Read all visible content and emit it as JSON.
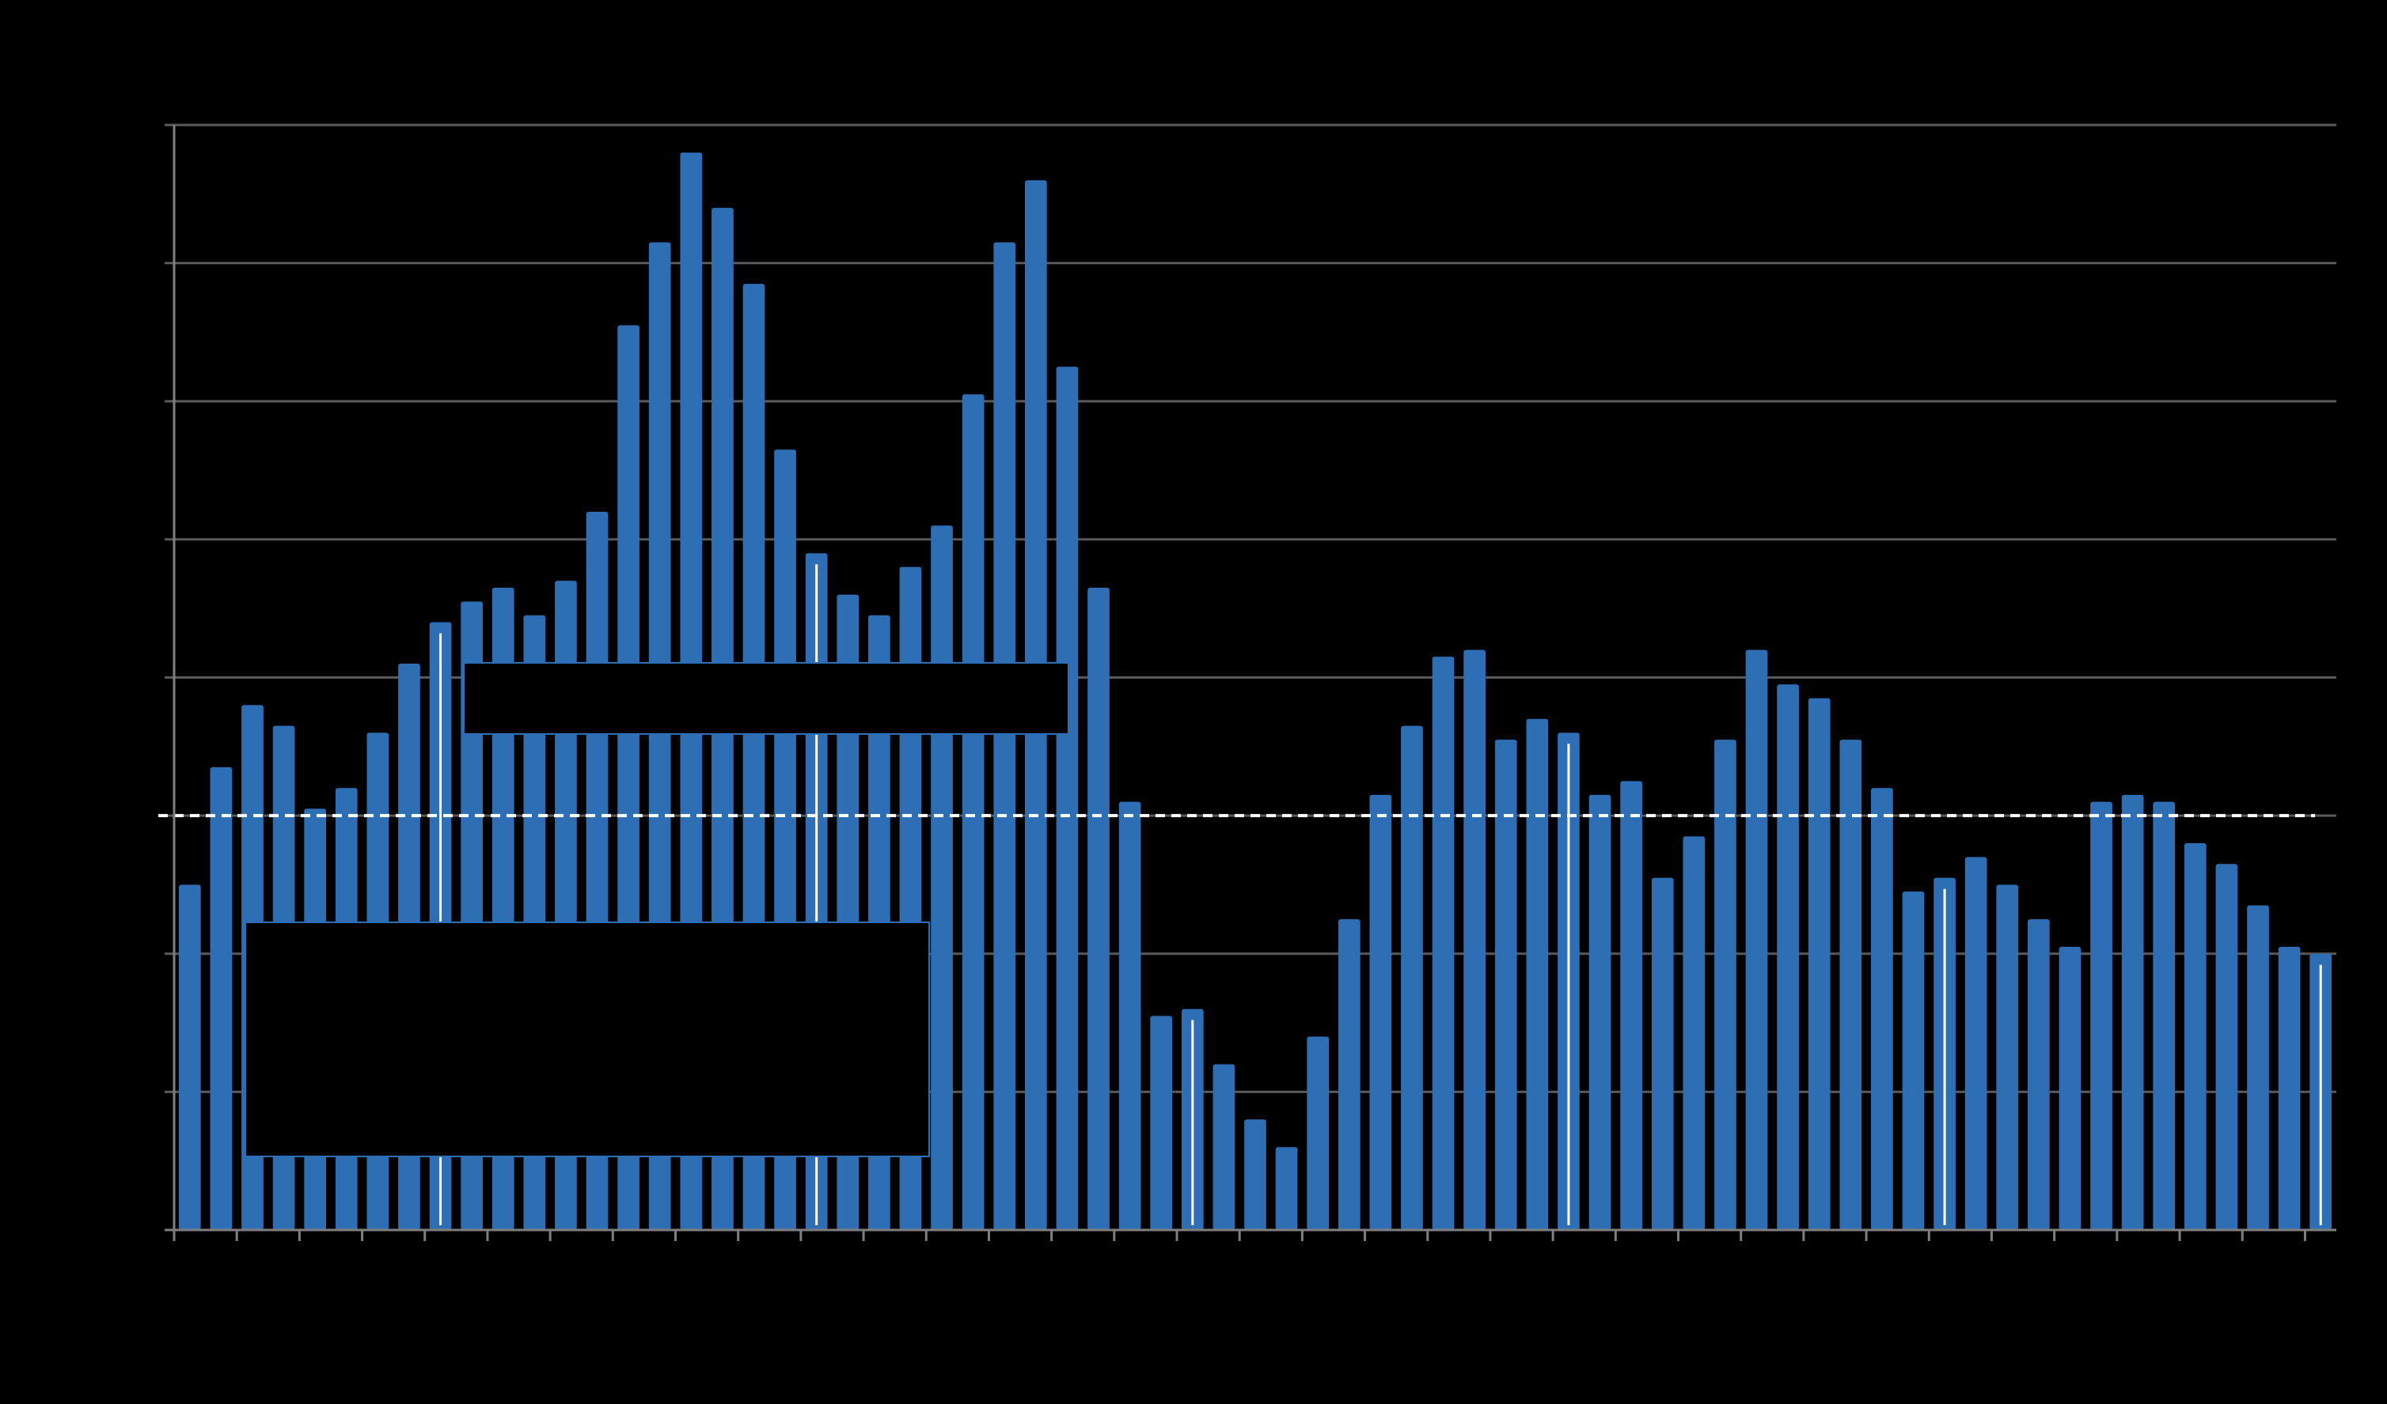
{
  "chart_data": {
    "type": "bar",
    "title": "",
    "xlabel": "",
    "ylabel": "",
    "ylim": [
      0,
      80
    ],
    "y_gridlines": [
      10,
      20,
      30,
      40,
      50,
      60,
      70,
      80
    ],
    "reference_line": 30,
    "grid": true,
    "legend": "none",
    "bar_color": "#2e6eb5",
    "background": "#000000",
    "year_marker_indices": [
      8,
      20,
      32,
      44,
      56,
      68
    ],
    "series": [
      {
        "values": [
          25,
          33.5,
          38,
          36.5,
          30.5,
          32,
          36,
          41,
          44,
          45.5,
          46.5,
          44.5,
          47,
          52,
          65.5,
          71.5,
          78,
          74,
          68.5,
          56.5,
          49,
          46,
          44.5,
          48,
          51,
          60.5,
          71.5,
          76,
          62.5,
          46.5,
          31,
          15.5,
          16,
          12,
          8,
          6,
          14,
          22.5,
          31.5,
          36.5,
          41.5,
          42,
          35.5,
          37,
          36,
          31.5,
          32.5,
          25.5,
          28.5,
          35.5,
          42,
          39.5,
          38.5,
          35.5,
          32,
          24.5,
          25.5,
          27,
          25,
          22.5,
          20.5,
          31,
          31.5,
          31,
          28,
          26.5,
          23.5,
          20.5,
          20
        ]
      }
    ]
  }
}
